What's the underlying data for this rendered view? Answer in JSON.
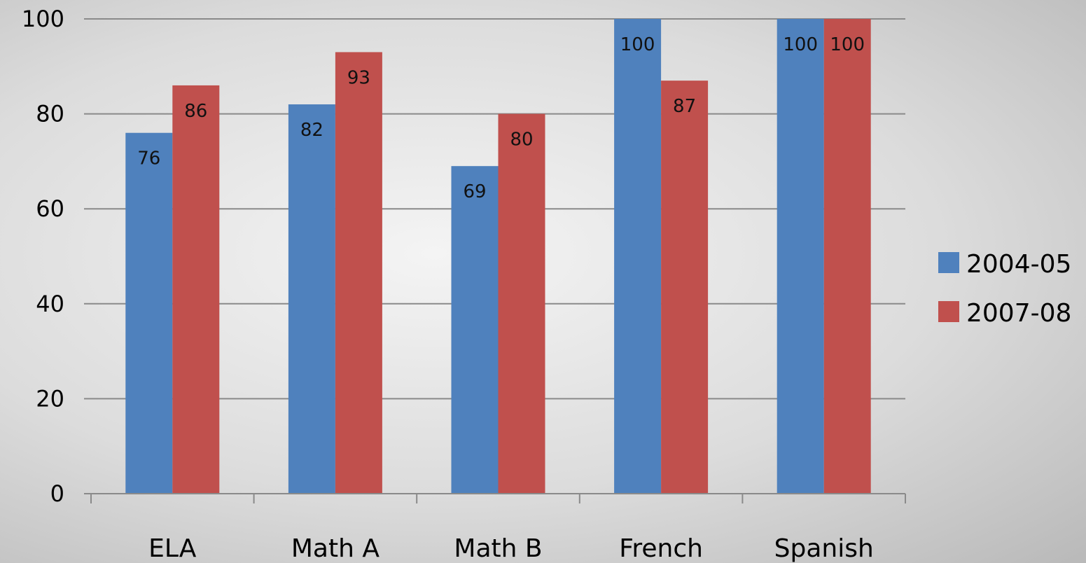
{
  "chart_data": {
    "type": "bar",
    "categories": [
      "ELA",
      "Math A",
      "Math B",
      "French",
      "Spanish"
    ],
    "series": [
      {
        "name": "2004-05",
        "values": [
          76,
          82,
          69,
          100,
          100
        ],
        "color": "#4f81bd"
      },
      {
        "name": "2007-08",
        "values": [
          86,
          93,
          80,
          87,
          100
        ],
        "color": "#c0504d"
      }
    ],
    "yticks": [
      0,
      20,
      40,
      60,
      80,
      100
    ],
    "ylim": [
      0,
      100
    ],
    "grid": true,
    "legend_position": "right",
    "title": "",
    "xlabel": "",
    "ylabel": ""
  }
}
